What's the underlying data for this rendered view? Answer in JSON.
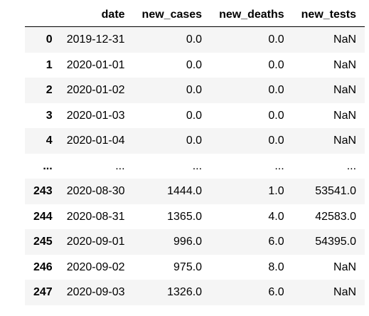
{
  "table": {
    "columns": [
      "",
      "date",
      "new_cases",
      "new_deaths",
      "new_tests"
    ],
    "rows": [
      {
        "index": "0",
        "date": "2019-12-31",
        "new_cases": "0.0",
        "new_deaths": "0.0",
        "new_tests": "NaN"
      },
      {
        "index": "1",
        "date": "2020-01-01",
        "new_cases": "0.0",
        "new_deaths": "0.0",
        "new_tests": "NaN"
      },
      {
        "index": "2",
        "date": "2020-01-02",
        "new_cases": "0.0",
        "new_deaths": "0.0",
        "new_tests": "NaN"
      },
      {
        "index": "3",
        "date": "2020-01-03",
        "new_cases": "0.0",
        "new_deaths": "0.0",
        "new_tests": "NaN"
      },
      {
        "index": "4",
        "date": "2020-01-04",
        "new_cases": "0.0",
        "new_deaths": "0.0",
        "new_tests": "NaN"
      },
      {
        "index": "...",
        "date": "...",
        "new_cases": "...",
        "new_deaths": "...",
        "new_tests": "..."
      },
      {
        "index": "243",
        "date": "2020-08-30",
        "new_cases": "1444.0",
        "new_deaths": "1.0",
        "new_tests": "53541.0"
      },
      {
        "index": "244",
        "date": "2020-08-31",
        "new_cases": "1365.0",
        "new_deaths": "4.0",
        "new_tests": "42583.0"
      },
      {
        "index": "245",
        "date": "2020-09-01",
        "new_cases": "996.0",
        "new_deaths": "6.0",
        "new_tests": "54395.0"
      },
      {
        "index": "246",
        "date": "2020-09-02",
        "new_cases": "975.0",
        "new_deaths": "8.0",
        "new_tests": "NaN"
      },
      {
        "index": "247",
        "date": "2020-09-03",
        "new_cases": "1326.0",
        "new_deaths": "6.0",
        "new_tests": "NaN"
      }
    ]
  },
  "colors": {
    "stripe": "#f5f5f5",
    "background": "#ffffff",
    "header_rule": "#000000"
  }
}
